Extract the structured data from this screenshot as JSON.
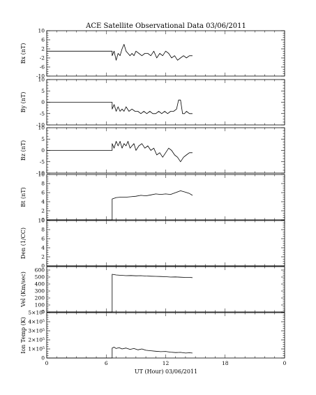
{
  "title": "ACE Satellite Observational Data   03/06/2011",
  "xlabel": "UT (Hour)  03/06/2011",
  "chart_data": {
    "type": "line",
    "title": "ACE Satellite Observational Data   03/06/2011",
    "xlabel": "UT (Hour)  03/06/2011",
    "x_ticks": [
      "0",
      "6",
      "12",
      "18",
      "0"
    ],
    "x_tick_values": [
      0,
      6,
      12,
      18,
      24
    ],
    "xlim": [
      0,
      24
    ],
    "panels": [
      {
        "name": "bx",
        "ylabel": "Bx (nT)",
        "ylim": [
          -10,
          10
        ],
        "y_ticks": [
          "10",
          "6",
          "2",
          "-2",
          "-6",
          "-10"
        ],
        "y_tick_values": [
          10,
          6,
          2,
          -2,
          -6,
          -10
        ],
        "series": [
          {
            "gap_before_hour": 6.6,
            "x": [
              0,
              6.6,
              6.6,
              6.8,
              7.0,
              7.2,
              7.4,
              7.6,
              7.8,
              8.0,
              8.2,
              8.4,
              8.6,
              8.8,
              9.0,
              9.3,
              9.6,
              9.9,
              10.2,
              10.5,
              10.8,
              11.1,
              11.4,
              11.7,
              12.0,
              12.3,
              12.6,
              12.9,
              13.2,
              13.5,
              13.8,
              14.1,
              14.4,
              14.7
            ],
            "y": [
              1,
              1,
              -1,
              1,
              -3,
              0,
              -1,
              2,
              4,
              1,
              0,
              -1,
              0,
              -1,
              1,
              0,
              -1,
              0,
              0,
              -1,
              1,
              -2,
              0,
              -1,
              1,
              0,
              -2,
              -1,
              -3,
              -2,
              -1,
              -2,
              -1,
              -1
            ]
          }
        ]
      },
      {
        "name": "by",
        "ylabel": "By (nT)",
        "ylim": [
          -10,
          10
        ],
        "y_ticks": [
          "10",
          "5",
          "0",
          "-5",
          "-10"
        ],
        "y_tick_values": [
          10,
          5,
          0,
          -5,
          -10
        ],
        "series": [
          {
            "x": [
              0,
              6.6,
              6.6,
              6.8,
              7.0,
              7.2,
              7.4,
              7.6,
              7.8,
              8.0,
              8.3,
              8.6,
              8.9,
              9.2,
              9.5,
              9.8,
              10.1,
              10.4,
              10.7,
              11.0,
              11.3,
              11.6,
              11.9,
              12.2,
              12.5,
              12.8,
              13.1,
              13.3,
              13.5,
              13.7,
              13.9,
              14.1,
              14.4,
              14.7
            ],
            "y": [
              0,
              0,
              -3,
              -1,
              -4,
              -2,
              -4,
              -3,
              -4,
              -2,
              -4,
              -3,
              -4,
              -4,
              -5,
              -4,
              -5,
              -4,
              -5,
              -5,
              -4,
              -5,
              -4,
              -5,
              -4,
              -4,
              -3,
              1,
              1,
              -5,
              -5,
              -4,
              -5,
              -5
            ]
          }
        ]
      },
      {
        "name": "bz",
        "ylabel": "Bz (nT)",
        "ylim": [
          -10,
          10
        ],
        "y_ticks": [
          "10",
          "5",
          "0",
          "-5",
          "-10"
        ],
        "y_tick_values": [
          10,
          5,
          0,
          -5,
          -10
        ],
        "series": [
          {
            "x": [
              0,
              6.6,
              6.6,
              6.8,
              7.0,
              7.2,
              7.4,
              7.6,
              7.8,
              8.0,
              8.2,
              8.4,
              8.6,
              8.8,
              9.0,
              9.3,
              9.6,
              9.9,
              10.2,
              10.5,
              10.8,
              11.1,
              11.4,
              11.7,
              12.0,
              12.3,
              12.6,
              12.9,
              13.2,
              13.5,
              13.8,
              14.1,
              14.4,
              14.7
            ],
            "y": [
              0,
              0,
              3,
              1,
              4,
              2,
              4,
              1,
              3,
              2,
              4,
              1,
              2,
              3,
              0,
              2,
              3,
              1,
              2,
              0,
              1,
              -2,
              -1,
              -3,
              -1,
              1,
              0,
              -2,
              -3,
              -5,
              -3,
              -2,
              -1,
              -1
            ]
          }
        ]
      },
      {
        "name": "bt",
        "ylabel": "Bt (nT)",
        "ylim": [
          0,
          10
        ],
        "y_ticks": [
          "10",
          "8",
          "6",
          "4",
          "2",
          "0"
        ],
        "y_tick_values": [
          10,
          8,
          6,
          4,
          2,
          0
        ],
        "series": [
          {
            "x": [
              0,
              6.6,
              6.6,
              7.0,
              7.5,
              8.0,
              8.5,
              9.0,
              9.5,
              10.0,
              10.5,
              11.0,
              11.5,
              12.0,
              12.5,
              13.0,
              13.5,
              14.0,
              14.4,
              14.7
            ],
            "y": [
              0,
              0,
              4.6,
              4.9,
              5.0,
              5.0,
              5.1,
              5.2,
              5.4,
              5.3,
              5.5,
              5.7,
              5.6,
              5.7,
              5.6,
              6.0,
              6.4,
              6.1,
              5.8,
              5.4
            ]
          }
        ]
      },
      {
        "name": "density",
        "ylabel": "Den (1/CC)",
        "ylim": [
          0,
          10
        ],
        "y_ticks": [
          "10",
          "8",
          "6",
          "4",
          "2",
          "0"
        ],
        "y_tick_values": [
          10,
          8,
          6,
          4,
          2,
          0
        ],
        "series": [
          {
            "x": [
              0,
              24
            ],
            "y": [
              0,
              0
            ]
          }
        ]
      },
      {
        "name": "velocity",
        "ylabel": "Vel (Km/sec)",
        "ylim": [
          0,
          650
        ],
        "y_ticks": [
          "600",
          "500",
          "400",
          "300",
          "200",
          "100",
          "0"
        ],
        "y_tick_values": [
          600,
          500,
          400,
          300,
          200,
          100,
          0
        ],
        "series": [
          {
            "x": [
              0,
              6.6,
              6.6,
              6.8,
              7.0,
              7.5,
              8.0,
              8.5,
              9.0,
              9.5,
              10.0,
              10.5,
              11.0,
              11.5,
              12.0,
              12.5,
              13.0,
              13.5,
              14.0,
              14.4,
              14.7
            ],
            "y": [
              0,
              0,
              540,
              535,
              530,
              525,
              520,
              522,
              518,
              520,
              515,
              512,
              510,
              508,
              505,
              500,
              502,
              498,
              495,
              495,
              492
            ]
          }
        ]
      },
      {
        "name": "ion-temp",
        "ylabel": "Ion Temp (K)",
        "ylim": [
          0,
          500000
        ],
        "y_ticks": [
          "5×10⁵",
          "4×10⁵",
          "3×10⁵",
          "2×10⁵",
          "1×10⁵",
          "0"
        ],
        "y_tick_values": [
          500000,
          400000,
          300000,
          200000,
          100000,
          0
        ],
        "series": [
          {
            "x": [
              0,
              6.6,
              6.6,
              6.8,
              7.0,
              7.3,
              7.6,
              8.0,
              8.4,
              8.8,
              9.2,
              9.6,
              10.0,
              10.5,
              11.0,
              11.5,
              12.0,
              12.5,
              13.0,
              13.5,
              14.0,
              14.4,
              14.7
            ],
            "y": [
              0,
              0,
              110000,
              120000,
              105000,
              115000,
              100000,
              110000,
              95000,
              105000,
              90000,
              100000,
              85000,
              80000,
              75000,
              70000,
              72000,
              65000,
              60000,
              62000,
              55000,
              58000,
              55000
            ]
          }
        ]
      }
    ]
  }
}
